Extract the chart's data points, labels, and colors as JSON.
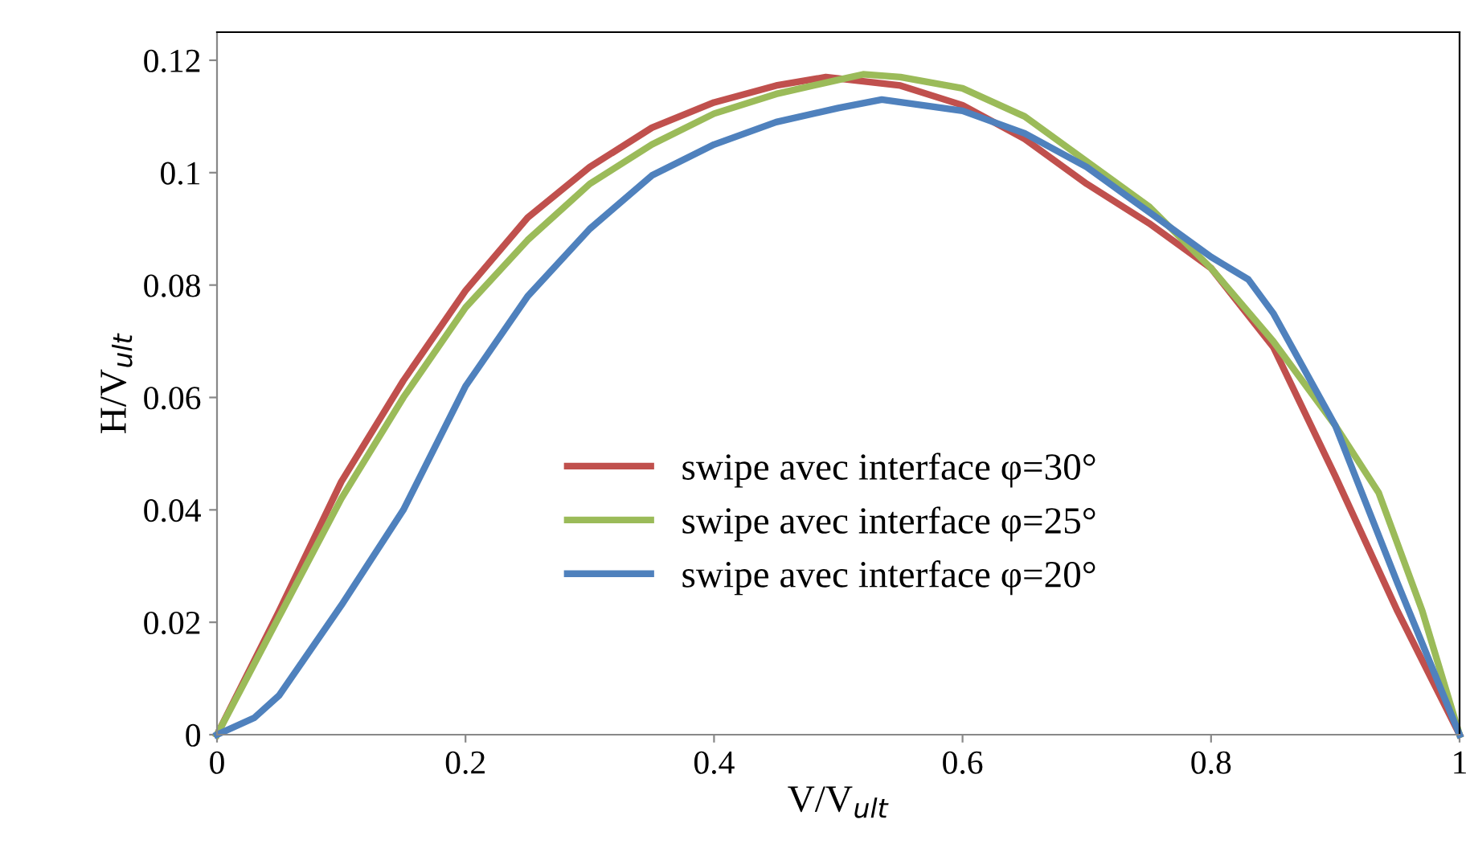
{
  "chart_data": {
    "type": "line",
    "xlabel": "V/V$_{ult}$",
    "ylabel": "H/V$_{ult}$",
    "xlim": [
      0,
      1
    ],
    "ylim": [
      0,
      0.125
    ],
    "xticks": [
      0,
      0.2,
      0.4,
      0.6,
      0.8,
      1
    ],
    "yticks": [
      0,
      0.02,
      0.04,
      0.06,
      0.08,
      0.1,
      0.12
    ],
    "grid": false,
    "legend": "center",
    "line_style": "solid",
    "marker": "none",
    "series": [
      {
        "name": "swipe avec interface φ=30°",
        "color": "#c0504d",
        "x": [
          0,
          0.05,
          0.1,
          0.15,
          0.2,
          0.25,
          0.3,
          0.35,
          0.4,
          0.45,
          0.49,
          0.55,
          0.6,
          0.65,
          0.7,
          0.75,
          0.8,
          0.85,
          0.9,
          0.95,
          1
        ],
        "values": [
          0,
          0.022,
          0.045,
          0.063,
          0.079,
          0.092,
          0.101,
          0.108,
          0.1125,
          0.1155,
          0.117,
          0.1155,
          0.112,
          0.106,
          0.098,
          0.091,
          0.083,
          0.069,
          0.046,
          0.022,
          0
        ]
      },
      {
        "name": "swipe avec interface φ=25°",
        "color": "#9bbb59",
        "x": [
          0,
          0.05,
          0.1,
          0.15,
          0.2,
          0.25,
          0.3,
          0.35,
          0.4,
          0.45,
          0.5,
          0.52,
          0.55,
          0.6,
          0.65,
          0.7,
          0.75,
          0.8,
          0.85,
          0.9,
          0.935,
          0.97,
          1
        ],
        "values": [
          0,
          0.021,
          0.042,
          0.06,
          0.076,
          0.088,
          0.098,
          0.105,
          0.1105,
          0.114,
          0.1165,
          0.1175,
          0.117,
          0.115,
          0.11,
          0.102,
          0.094,
          0.083,
          0.07,
          0.055,
          0.043,
          0.022,
          0
        ]
      },
      {
        "name": "swipe avec interface φ=20°",
        "color": "#4f81bd",
        "x": [
          0,
          0.03,
          0.05,
          0.1,
          0.15,
          0.2,
          0.25,
          0.3,
          0.35,
          0.4,
          0.45,
          0.5,
          0.535,
          0.6,
          0.65,
          0.7,
          0.75,
          0.8,
          0.83,
          0.85,
          0.9,
          0.95,
          1
        ],
        "values": [
          0,
          0.003,
          0.007,
          0.023,
          0.04,
          0.062,
          0.078,
          0.09,
          0.0995,
          0.105,
          0.109,
          0.1115,
          0.113,
          0.111,
          0.107,
          0.101,
          0.093,
          0.085,
          0.081,
          0.075,
          0.055,
          0.027,
          0
        ]
      }
    ]
  }
}
